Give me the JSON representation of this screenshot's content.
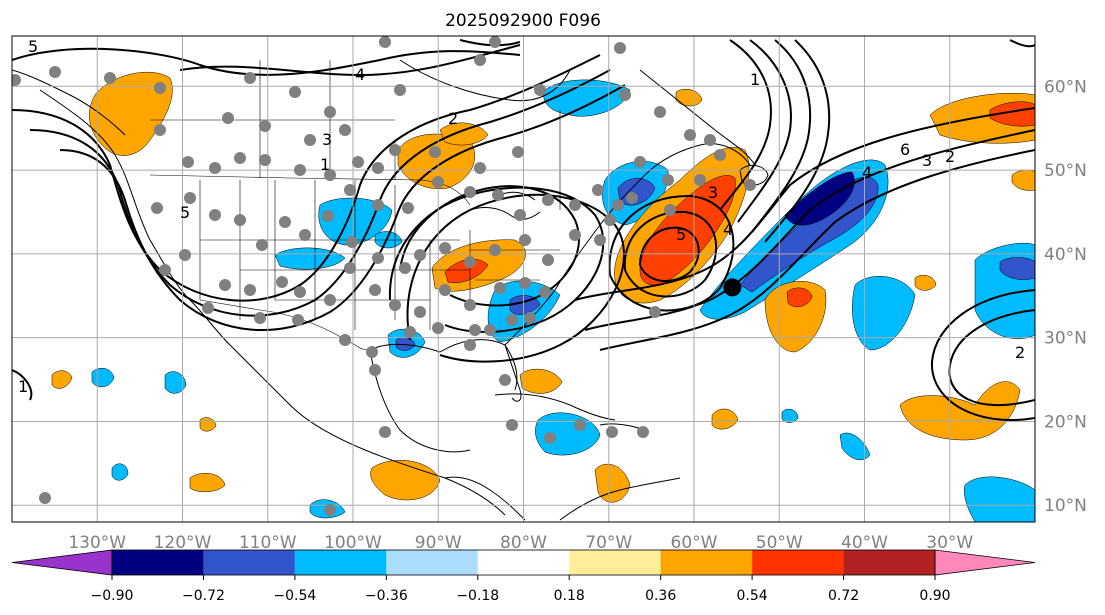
{
  "title": "2025092900 F096",
  "map": {
    "lon_range": [
      -140,
      -20
    ],
    "lat_range": [
      8,
      66
    ],
    "lon_ticks": [
      "130°W",
      "120°W",
      "110°W",
      "100°W",
      "90°W",
      "80°W",
      "70°W",
      "60°W",
      "50°W",
      "40°W",
      "30°W"
    ],
    "lat_ticks": [
      "60°N",
      "50°N",
      "40°N",
      "30°N",
      "20°N",
      "10°N"
    ],
    "lon_tick_values": [
      -130,
      -120,
      -110,
      -100,
      -90,
      -80,
      -70,
      -60,
      -50,
      -40,
      -30
    ],
    "lat_tick_values": [
      60,
      50,
      40,
      30,
      20,
      10
    ],
    "gridlines": true,
    "contour_labels": [
      "5",
      "4",
      "3",
      "2",
      "1",
      "5",
      "6",
      "4",
      "3",
      "2",
      "1",
      "4",
      "3",
      "5",
      "2",
      "1"
    ],
    "storm_marker": {
      "lon": -55.5,
      "lat": 36
    }
  },
  "colorbar": {
    "ticks": [
      "−0.90",
      "−0.72",
      "−0.54",
      "−0.36",
      "−0.18",
      "0.18",
      "0.36",
      "0.54",
      "0.72",
      "0.90"
    ],
    "colors": [
      "#9933cc",
      "#000080",
      "#3355cc",
      "#00bbff",
      "#aaddff",
      "#ffffff",
      "#ffee99",
      "#ffa500",
      "#ff3300",
      "#b22222",
      "#ff88bb"
    ],
    "extend": "both"
  },
  "colors": {
    "orange": "#ffa500",
    "red": "#ff4000",
    "deep_blue": "#000080",
    "mid_blue": "#3355cc",
    "light_blue": "#00bbff",
    "marker_gray": "#808080"
  }
}
